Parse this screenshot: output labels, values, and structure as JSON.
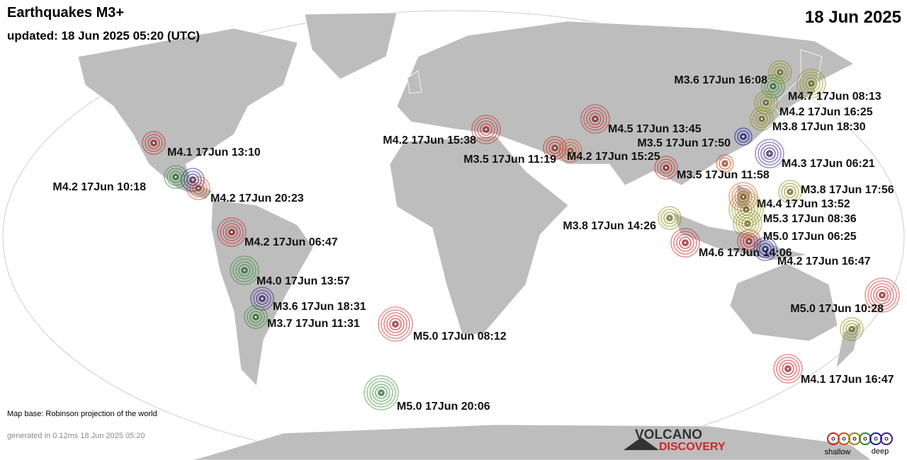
{
  "header": {
    "title": "Earthquakes M3+",
    "updated": "updated: 18 Jun 2025 05:20 (UTC)",
    "date": "18 Jun 2025"
  },
  "footer": {
    "map_base": "Map base: Robinson projection of the world",
    "generated": "generated in 0.12ms 18 Jun 2025 05:20",
    "logo_top": "VOLCANO",
    "logo_bottom": "DISCOVERY"
  },
  "legend": {
    "shallow": "shallow",
    "deep": "deep"
  },
  "quakes": [
    {
      "label": "M4.1 17Jun 13:10",
      "color": "#c81e1e"
    },
    {
      "label": "M4.2 17Jun 10:18",
      "color": "#2a8a2a"
    },
    {
      "label": "M4.2 17Jun 20:23",
      "color": "#d04a1a"
    },
    {
      "label": "M4.2 17Jun 06:47",
      "color": "#c81e1e"
    },
    {
      "label": "M4.0 17Jun 13:57",
      "color": "#2a8a2a"
    },
    {
      "label": "M3.6 17Jun 18:31",
      "color": "#3a1a8a"
    },
    {
      "label": "M3.7 17Jun 11:31",
      "color": "#2a8a2a"
    },
    {
      "label": "M5.0 17Jun 08:12",
      "color": "#c81e1e"
    },
    {
      "label": "M5.0 17Jun 20:06",
      "color": "#2a8a2a"
    },
    {
      "label": "M4.2 17Jun 15:38",
      "color": "#c81e1e"
    },
    {
      "label": "M3.5 17Jun 11:19",
      "color": "#c81e1e"
    },
    {
      "label": "M4.2 17Jun 15:25",
      "color": "#d04a1a"
    },
    {
      "label": "M4.5 17Jun 13:45",
      "color": "#c81e1e"
    },
    {
      "label": "M3.5 17Jun 17:50",
      "color": "#1a1aa0"
    },
    {
      "label": "M3.5 17Jun 11:58",
      "color": "#c81e1e"
    },
    {
      "label": "M4.3 17Jun 06:21",
      "color": "#3a1a8a"
    },
    {
      "label": "M3.6 17Jun 16:08",
      "color": "#8a8a10"
    },
    {
      "label": "M4.7 17Jun 08:13",
      "color": "#8a8a10"
    },
    {
      "label": "M4.2 17Jun 16:25",
      "color": "#8a8a10"
    },
    {
      "label": "M3.8 17Jun 18:30",
      "color": "#8a8a10"
    },
    {
      "label": "M3.8 17Jun 17:56",
      "color": "#8a8a10"
    },
    {
      "label": "M4.4 17Jun 13:52",
      "color": "#d04a1a"
    },
    {
      "label": "M5.3 17Jun 08:36",
      "color": "#8a8a10"
    },
    {
      "label": "M5.0 17Jun 06:25",
      "color": "#c81e1e"
    },
    {
      "label": "M3.8 17Jun 14:26",
      "color": "#8a8a10"
    },
    {
      "label": "M4.6 17Jun 14:06",
      "color": "#c81e1e"
    },
    {
      "label": "M4.2 17Jun 16:47",
      "color": "#1a1aa0"
    },
    {
      "label": "M5.0 17Jun 10:28",
      "color": "#c81e1e"
    },
    {
      "label": "M4.1 17Jun 16:47",
      "color": "#c81e1e"
    }
  ]
}
